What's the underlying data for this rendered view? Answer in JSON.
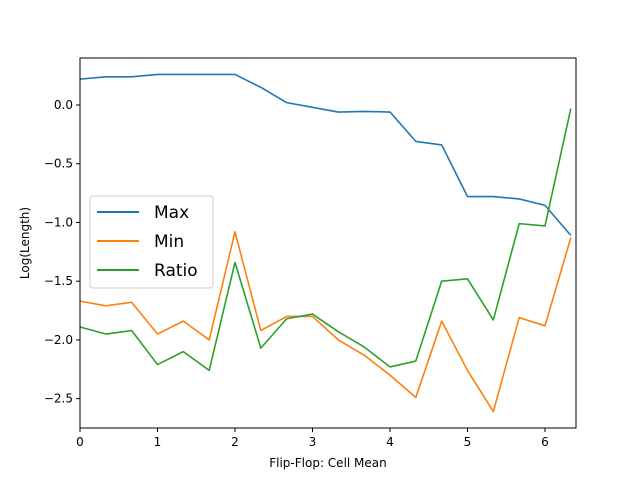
{
  "chart_data": {
    "type": "line",
    "title": "",
    "xlabel": "Flip-Flop: Cell Mean",
    "ylabel": "Log(Length)",
    "xlim": [
      0,
      6.4
    ],
    "ylim": [
      -2.75,
      0.4
    ],
    "xticks": [
      0,
      1,
      2,
      3,
      4,
      5,
      6
    ],
    "yticks": [
      0.0,
      -0.5,
      -1.0,
      -1.5,
      -2.0,
      -2.5
    ],
    "xtick_labels": [
      "0",
      "1",
      "2",
      "3",
      "4",
      "5",
      "6"
    ],
    "ytick_labels": [
      "0.0",
      "−0.5",
      "−1.0",
      "−1.5",
      "−2.0",
      "−2.5"
    ],
    "grid": false,
    "legend_position": "center-left",
    "x": [
      0,
      0.333,
      0.667,
      1,
      1.333,
      1.667,
      2,
      2.333,
      2.667,
      3,
      3.333,
      3.667,
      4,
      4.333,
      4.667,
      5,
      5.333,
      5.667,
      6,
      6.333
    ],
    "series": [
      {
        "name": "Max",
        "color": "#1f77b4",
        "values": [
          0.22,
          0.24,
          0.24,
          0.26,
          0.26,
          0.26,
          0.26,
          0.15,
          0.02,
          -0.02,
          -0.06,
          -0.055,
          -0.06,
          -0.31,
          -0.34,
          -0.78,
          -0.78,
          -0.8,
          -0.855,
          -1.11
        ]
      },
      {
        "name": "Min",
        "color": "#ff7f0e",
        "values": [
          -1.67,
          -1.71,
          -1.68,
          -1.95,
          -1.84,
          -2.0,
          -1.08,
          -1.92,
          -1.8,
          -1.8,
          -2.0,
          -2.13,
          -2.3,
          -2.49,
          -1.84,
          -2.26,
          -2.61,
          -1.81,
          -1.88,
          -1.13
        ]
      },
      {
        "name": "Ratio",
        "color": "#2ca02c",
        "values": [
          -1.89,
          -1.95,
          -1.92,
          -2.21,
          -2.1,
          -2.26,
          -1.34,
          -2.07,
          -1.82,
          -1.78,
          -1.93,
          -2.06,
          -2.23,
          -2.18,
          -1.5,
          -1.48,
          -1.83,
          -1.01,
          -1.03,
          -0.03
        ]
      }
    ]
  }
}
